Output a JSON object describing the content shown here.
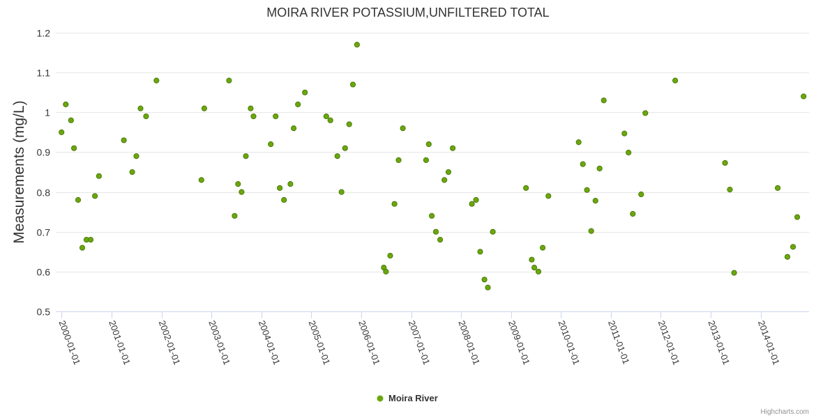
{
  "chart_data": {
    "type": "scatter",
    "title": "MOIRA RIVER POTASSIUM,UNFILTERED TOTAL",
    "xlabel": "",
    "ylabel": "Measurements (mg/L)",
    "ylim": [
      0.5,
      1.2
    ],
    "yticks": [
      0.5,
      0.6,
      0.7,
      0.8,
      0.9,
      1.0,
      1.1,
      1.2
    ],
    "ytick_labels": [
      "0.5",
      "0.6",
      "0.7",
      "0.8",
      "0.9",
      "1",
      "1.1",
      "1.2"
    ],
    "xlim": [
      "1999-11-20",
      "2014-12-20"
    ],
    "xticks": [
      "2000-01-01",
      "2001-01-01",
      "2002-01-01",
      "2003-01-01",
      "2004-01-01",
      "2005-01-01",
      "2006-01-01",
      "2007-01-01",
      "2008-01-01",
      "2009-01-01",
      "2010-01-01",
      "2011-01-01",
      "2012-01-01",
      "2013-01-01",
      "2014-01-01"
    ],
    "grid": true,
    "legend_position": "bottom-center",
    "series": [
      {
        "name": "Moira River",
        "color": "#6aa80e",
        "points": [
          [
            "2000-01-01",
            0.95
          ],
          [
            "2000-02-01",
            1.02
          ],
          [
            "2000-03-10",
            0.98
          ],
          [
            "2000-04-01",
            0.91
          ],
          [
            "2000-05-01",
            0.78
          ],
          [
            "2000-06-01",
            0.66
          ],
          [
            "2000-07-01",
            0.68
          ],
          [
            "2000-08-01",
            0.68
          ],
          [
            "2000-09-01",
            0.79
          ],
          [
            "2000-10-01",
            0.84
          ],
          [
            "2001-04-01",
            0.93
          ],
          [
            "2001-06-01",
            0.85
          ],
          [
            "2001-07-01",
            0.89
          ],
          [
            "2001-08-01",
            1.01
          ],
          [
            "2001-09-10",
            0.99
          ],
          [
            "2001-11-25",
            1.08
          ],
          [
            "2002-10-20",
            0.83
          ],
          [
            "2002-11-10",
            1.01
          ],
          [
            "2003-05-10",
            1.08
          ],
          [
            "2003-06-20",
            0.74
          ],
          [
            "2003-07-15",
            0.82
          ],
          [
            "2003-08-10",
            0.8
          ],
          [
            "2003-09-10",
            0.89
          ],
          [
            "2003-10-15",
            1.01
          ],
          [
            "2003-11-05",
            0.99
          ],
          [
            "2004-03-10",
            0.92
          ],
          [
            "2004-04-15",
            0.99
          ],
          [
            "2004-05-15",
            0.81
          ],
          [
            "2004-06-15",
            0.78
          ],
          [
            "2004-08-01",
            0.82
          ],
          [
            "2004-08-25",
            0.96
          ],
          [
            "2004-09-25",
            1.02
          ],
          [
            "2004-11-15",
            1.05
          ],
          [
            "2005-04-20",
            0.99
          ],
          [
            "2005-05-20",
            0.98
          ],
          [
            "2005-07-10",
            0.89
          ],
          [
            "2005-08-10",
            0.8
          ],
          [
            "2005-09-05",
            0.91
          ],
          [
            "2005-10-05",
            0.97
          ],
          [
            "2005-11-01",
            1.07
          ],
          [
            "2005-12-01",
            1.17
          ],
          [
            "2006-06-15",
            0.61
          ],
          [
            "2006-07-01",
            0.6
          ],
          [
            "2006-08-01",
            0.64
          ],
          [
            "2006-09-01",
            0.77
          ],
          [
            "2006-10-01",
            0.88
          ],
          [
            "2006-11-01",
            0.96
          ],
          [
            "2007-04-20",
            0.88
          ],
          [
            "2007-05-10",
            0.92
          ],
          [
            "2007-06-01",
            0.74
          ],
          [
            "2007-07-01",
            0.7
          ],
          [
            "2007-08-01",
            0.68
          ],
          [
            "2007-09-01",
            0.83
          ],
          [
            "2007-10-01",
            0.85
          ],
          [
            "2007-11-01",
            0.91
          ],
          [
            "2008-03-20",
            0.77
          ],
          [
            "2008-04-20",
            0.78
          ],
          [
            "2008-05-20",
            0.65
          ],
          [
            "2008-06-20",
            0.58
          ],
          [
            "2008-07-15",
            0.56
          ],
          [
            "2008-08-20",
            0.7
          ],
          [
            "2009-04-20",
            0.81
          ],
          [
            "2009-06-01",
            0.63
          ],
          [
            "2009-06-20",
            0.61
          ],
          [
            "2009-07-20",
            0.6
          ],
          [
            "2009-08-20",
            0.66
          ],
          [
            "2009-10-01",
            0.79
          ],
          [
            "2010-05-10",
            0.925
          ],
          [
            "2010-06-10",
            0.87
          ],
          [
            "2010-07-10",
            0.805
          ],
          [
            "2010-08-10",
            0.702
          ],
          [
            "2010-09-10",
            0.778
          ],
          [
            "2010-10-10",
            0.859
          ],
          [
            "2010-11-10",
            1.03
          ],
          [
            "2011-04-10",
            0.947
          ],
          [
            "2011-05-10",
            0.899
          ],
          [
            "2011-06-10",
            0.745
          ],
          [
            "2011-08-10",
            0.794
          ],
          [
            "2011-09-10",
            0.998
          ],
          [
            "2012-04-15",
            1.08
          ],
          [
            "2013-04-15",
            0.873
          ],
          [
            "2013-05-20",
            0.806
          ],
          [
            "2013-06-20",
            0.597
          ],
          [
            "2014-05-05",
            0.81
          ],
          [
            "2014-07-15",
            0.637
          ],
          [
            "2014-08-25",
            0.662
          ],
          [
            "2014-09-25",
            0.737
          ],
          [
            "2014-11-10",
            1.04
          ]
        ]
      }
    ]
  },
  "credits": "Highcharts.com"
}
